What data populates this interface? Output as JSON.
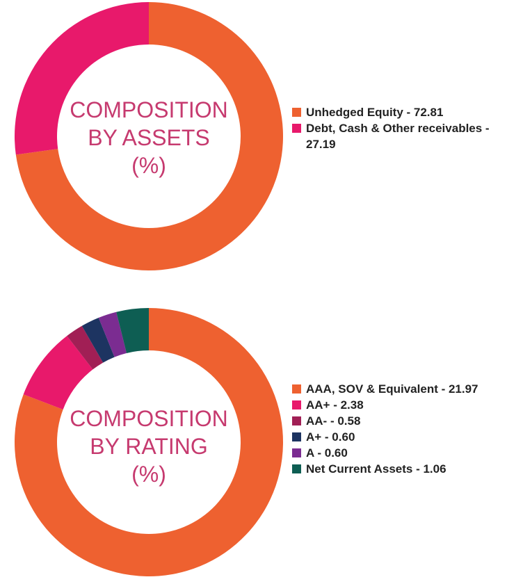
{
  "chart_data": [
    {
      "type": "pie",
      "title_lines": [
        "COMPOSITION",
        "BY ASSETS",
        "(%)"
      ],
      "title_color": "#c63a6f",
      "slices": [
        {
          "label": "Unhedged Equity - 72.81",
          "value": 72.81,
          "color": "#ee6130"
        },
        {
          "label": "Debt, Cash & Other receivables - 27.19",
          "value": 27.19,
          "color": "#e8196b"
        }
      ]
    },
    {
      "type": "pie",
      "title_lines": [
        "COMPOSITION",
        "BY RATING",
        "(%)"
      ],
      "title_color": "#c63a6f",
      "slices": [
        {
          "label": "AAA, SOV & Equivalent - 21.97",
          "value": 21.97,
          "color": "#ee6130"
        },
        {
          "label": "AA+ - 2.38",
          "value": 2.38,
          "color": "#e8196b"
        },
        {
          "label": "AA- - 0.58",
          "value": 0.58,
          "color": "#a11f55"
        },
        {
          "label": "A+ - 0.60",
          "value": 0.6,
          "color": "#1d3461"
        },
        {
          "label": "A - 0.60",
          "value": 0.6,
          "color": "#7b2c91"
        },
        {
          "label": "Net Current Assets - 1.06",
          "value": 1.06,
          "color": "#0e5e53"
        }
      ]
    }
  ]
}
